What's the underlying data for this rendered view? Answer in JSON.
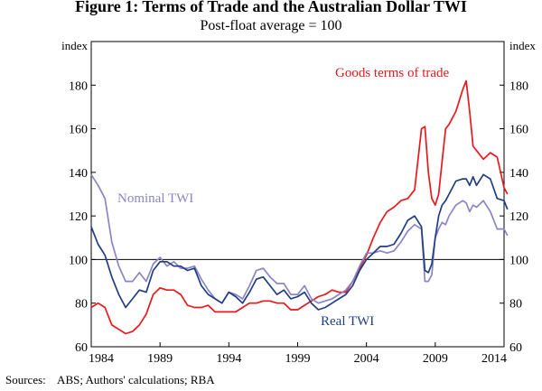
{
  "chart_data": {
    "type": "line",
    "title": "Figure 1: Terms of Trade and the Australian Dollar TWI",
    "subtitle": "Post-float average = 100",
    "y_unit_left": "index",
    "y_unit_right": "index",
    "ylim": [
      60,
      200
    ],
    "yticks": [
      60,
      80,
      100,
      120,
      140,
      160,
      180
    ],
    "xlim": [
      1984,
      2014
    ],
    "xticks": [
      1984,
      1989,
      1994,
      1999,
      2004,
      2009,
      2014
    ],
    "reference_line": 100,
    "grid": false,
    "series": [
      {
        "name": "Goods terms of trade",
        "color": "#e8191c",
        "label": "Goods terms of trade",
        "x": [
          1984.0,
          1984.5,
          1985.0,
          1985.5,
          1986.0,
          1986.5,
          1987.0,
          1987.5,
          1988.0,
          1988.5,
          1989.0,
          1989.5,
          1990.0,
          1990.5,
          1991.0,
          1991.5,
          1992.0,
          1992.5,
          1993.0,
          1993.5,
          1994.0,
          1994.5,
          1995.0,
          1995.5,
          1996.0,
          1996.5,
          1997.0,
          1997.5,
          1998.0,
          1998.5,
          1999.0,
          1999.5,
          2000.0,
          2000.5,
          2001.0,
          2001.5,
          2002.0,
          2002.5,
          2003.0,
          2003.5,
          2004.0,
          2004.5,
          2005.0,
          2005.5,
          2006.0,
          2006.5,
          2007.0,
          2007.5,
          2008.0,
          2008.25,
          2008.5,
          2008.75,
          2009.0,
          2009.25,
          2009.5,
          2009.75,
          2010.0,
          2010.5,
          2011.0,
          2011.25,
          2011.5,
          2011.75,
          2012.0,
          2012.5,
          2013.0,
          2013.5,
          2014.0,
          2014.25
        ],
        "values": [
          78,
          80,
          78,
          70,
          68,
          66,
          67,
          70,
          75,
          84,
          87,
          86,
          86,
          84,
          79,
          78,
          78,
          79,
          76,
          76,
          76,
          76,
          78,
          80,
          80,
          81,
          81,
          80,
          80,
          77,
          77,
          79,
          81,
          83,
          84,
          86,
          85,
          85,
          90,
          96,
          102,
          110,
          117,
          122,
          124,
          127,
          128,
          132,
          160,
          161,
          140,
          128,
          125,
          130,
          145,
          160,
          162,
          168,
          178,
          182,
          168,
          152,
          150,
          146,
          149,
          147,
          133,
          130
        ]
      },
      {
        "name": "Real TWI",
        "color": "#213e83",
        "label": "Real TWI",
        "x": [
          1984.0,
          1984.5,
          1985.0,
          1985.5,
          1986.0,
          1986.5,
          1987.0,
          1987.5,
          1988.0,
          1988.5,
          1989.0,
          1989.5,
          1990.0,
          1990.5,
          1991.0,
          1991.5,
          1992.0,
          1992.5,
          1993.0,
          1993.5,
          1994.0,
          1994.5,
          1995.0,
          1995.5,
          1996.0,
          1996.5,
          1997.0,
          1997.5,
          1998.0,
          1998.5,
          1999.0,
          1999.5,
          2000.0,
          2000.5,
          2001.0,
          2001.5,
          2002.0,
          2002.5,
          2003.0,
          2003.5,
          2004.0,
          2004.5,
          2005.0,
          2005.5,
          2006.0,
          2006.5,
          2007.0,
          2007.5,
          2008.0,
          2008.25,
          2008.5,
          2008.75,
          2009.0,
          2009.25,
          2009.5,
          2009.75,
          2010.0,
          2010.5,
          2011.0,
          2011.25,
          2011.5,
          2011.75,
          2012.0,
          2012.5,
          2013.0,
          2013.5,
          2014.0,
          2014.25
        ],
        "values": [
          115,
          107,
          102,
          92,
          84,
          78,
          82,
          86,
          85,
          95,
          99,
          99,
          97,
          97,
          95,
          96,
          88,
          84,
          82,
          80,
          85,
          83,
          80,
          85,
          91,
          92,
          88,
          84,
          86,
          82,
          83,
          85,
          80,
          77,
          78,
          80,
          82,
          84,
          88,
          95,
          100,
          103,
          106,
          106,
          107,
          112,
          118,
          120,
          115,
          95,
          94,
          98,
          110,
          120,
          125,
          127,
          130,
          136,
          137,
          137,
          134,
          138,
          134,
          139,
          137,
          128,
          127,
          123
        ]
      },
      {
        "name": "Nominal TWI",
        "color": "#8a86c6",
        "label": "Nominal TWI",
        "x": [
          1984.0,
          1984.5,
          1985.0,
          1985.5,
          1986.0,
          1986.5,
          1987.0,
          1987.5,
          1988.0,
          1988.5,
          1989.0,
          1989.5,
          1990.0,
          1990.5,
          1991.0,
          1991.5,
          1992.0,
          1992.5,
          1993.0,
          1993.5,
          1994.0,
          1994.5,
          1995.0,
          1995.5,
          1996.0,
          1996.5,
          1997.0,
          1997.5,
          1998.0,
          1998.5,
          1999.0,
          1999.5,
          2000.0,
          2000.5,
          2001.0,
          2001.5,
          2002.0,
          2002.5,
          2003.0,
          2003.5,
          2004.0,
          2004.5,
          2005.0,
          2005.5,
          2006.0,
          2006.5,
          2007.0,
          2007.5,
          2008.0,
          2008.25,
          2008.5,
          2008.75,
          2009.0,
          2009.25,
          2009.5,
          2009.75,
          2010.0,
          2010.5,
          2011.0,
          2011.25,
          2011.5,
          2011.75,
          2012.0,
          2012.5,
          2013.0,
          2013.5,
          2014.0,
          2014.25
        ],
        "values": [
          139,
          134,
          128,
          108,
          97,
          90,
          90,
          94,
          90,
          98,
          101,
          97,
          99,
          96,
          96,
          97,
          91,
          86,
          82,
          80,
          85,
          84,
          82,
          88,
          95,
          96,
          92,
          89,
          89,
          84,
          84,
          88,
          82,
          80,
          81,
          82,
          84,
          86,
          90,
          97,
          103,
          103,
          104,
          103,
          104,
          108,
          113,
          116,
          114,
          90,
          90,
          93,
          110,
          114,
          117,
          116,
          120,
          125,
          127,
          126,
          122,
          125,
          124,
          127,
          122,
          114,
          114,
          111
        ]
      }
    ]
  },
  "sources": "Sources:    ABS; Authors' calculations; RBA"
}
